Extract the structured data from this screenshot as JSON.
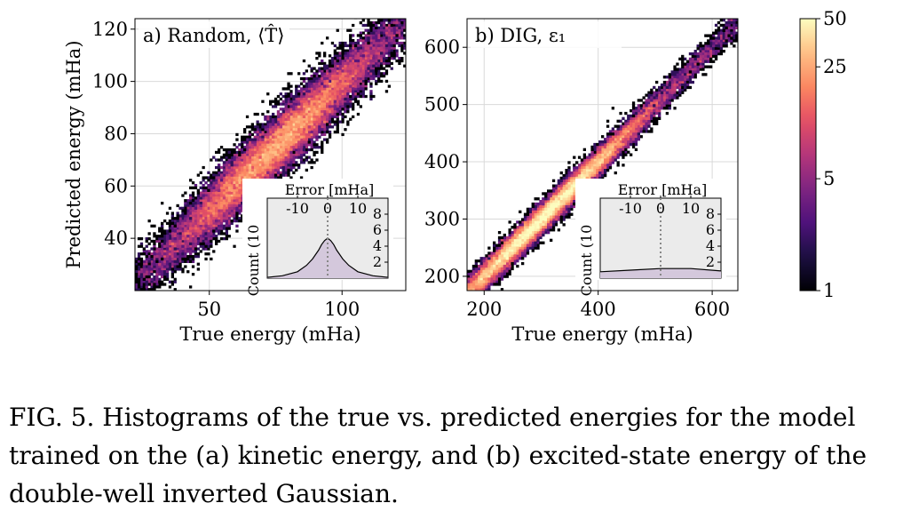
{
  "caption": "FIG. 5. Histograms of the true vs. predicted energies for the model trained on the (a) kinetic energy, and (b) excited-state energy of the double-well inverted Gaussian.",
  "colorbar": {
    "ticks": [
      "1",
      "5",
      "25",
      "50"
    ],
    "values": [
      1,
      5,
      25,
      50
    ],
    "scale": "log",
    "colormap": "magma"
  },
  "colors": {
    "inset_bg": "#ebebeb",
    "inset_fill": "#d4c8dc",
    "grid": "#d9d9d9"
  },
  "chart_data": [
    {
      "type": "heatmap",
      "panel_label": "a) Random, ⟨T̂⟩",
      "xlabel": "True energy (mHa)",
      "ylabel": "Predicted energy (mHa)",
      "xlim": [
        22,
        124
      ],
      "ylim": [
        20,
        124
      ],
      "xticks": [
        50,
        100
      ],
      "yticks": [
        40,
        60,
        80,
        100,
        120
      ],
      "x_tick_labels": [
        "50",
        "100"
      ],
      "y_tick_labels": [
        "40",
        "60",
        "80",
        "100",
        "120"
      ],
      "grid": true,
      "density_peak": [
        75,
        75
      ],
      "spread": 6.5,
      "inset": {
        "title": "Error [mHa]",
        "xlabel": "Count (10",
        "xticks": [
          -10,
          0,
          10
        ],
        "x_tick_labels": [
          "-10",
          "0",
          "10"
        ],
        "yticks": [
          2,
          4,
          6,
          8
        ],
        "y_tick_labels": [
          "2",
          "4",
          "6",
          "8"
        ],
        "xlim": [
          -20,
          20
        ],
        "ylim": [
          0,
          10
        ],
        "x": [
          -20,
          -15,
          -10,
          -7,
          -5,
          -3,
          -2,
          -1,
          0,
          1,
          2,
          3,
          5,
          7,
          10,
          15,
          20
        ],
        "y": [
          0.1,
          0.3,
          0.8,
          1.6,
          2.4,
          3.5,
          4.2,
          4.7,
          5.0,
          4.7,
          4.2,
          3.5,
          2.4,
          1.6,
          0.8,
          0.3,
          0.1
        ]
      }
    },
    {
      "type": "heatmap",
      "panel_label": "b) DIG, ε₁",
      "xlabel": "True energy (mHa)",
      "ylabel": "",
      "xlim": [
        170,
        645
      ],
      "ylim": [
        175,
        650
      ],
      "xticks": [
        200,
        400,
        600
      ],
      "yticks": [
        200,
        300,
        400,
        500,
        600
      ],
      "x_tick_labels": [
        "200",
        "400",
        "600"
      ],
      "y_tick_labels": [
        "200",
        "300",
        "400",
        "500",
        "600"
      ],
      "grid": true,
      "density_peak": [
        300,
        300
      ],
      "spread": 14,
      "inset": {
        "title": "Error [mHa]",
        "xlabel": "Count (10",
        "xticks": [
          -10,
          0,
          10
        ],
        "x_tick_labels": [
          "-10",
          "0",
          "10"
        ],
        "yticks": [
          2,
          4,
          6,
          8
        ],
        "y_tick_labels": [
          "2",
          "4",
          "6",
          "8"
        ],
        "xlim": [
          -20,
          20
        ],
        "ylim": [
          0,
          10
        ],
        "x": [
          -20,
          -10,
          0,
          10,
          20
        ],
        "y": [
          0.8,
          1.0,
          1.2,
          1.2,
          0.9
        ]
      }
    }
  ]
}
